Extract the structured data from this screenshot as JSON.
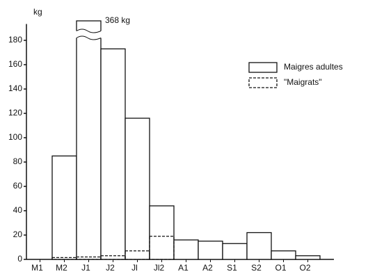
{
  "chart_data": {
    "type": "bar",
    "stacked": false,
    "y_label": "kg",
    "categories": [
      "M1",
      "M2",
      "J1",
      "J2",
      "Jl",
      "Jl2",
      "A1",
      "A2",
      "S1",
      "S2",
      "O1",
      "O2"
    ],
    "series": [
      {
        "name": "Maigres adultes",
        "color": "#111111",
        "style": "solid",
        "values": [
          0,
          85,
          368,
          173,
          116,
          44,
          16,
          15,
          13,
          22,
          7,
          3
        ],
        "value_labels": [
          null,
          null,
          "368 kg",
          null,
          null,
          null,
          null,
          null,
          null,
          null,
          null,
          null
        ]
      },
      {
        "name": "\"Maigrats\"",
        "color": "#111111",
        "style": "dashed",
        "values": [
          null,
          1.5,
          2,
          3,
          7,
          19,
          null,
          null,
          null,
          null,
          null,
          null
        ]
      }
    ],
    "ylim": [
      0,
      372
    ],
    "axis_break": [
      190,
      362
    ],
    "yticks": [
      0,
      20,
      40,
      60,
      80,
      100,
      120,
      140,
      160,
      180
    ],
    "grid": false,
    "legend": "upper right"
  }
}
